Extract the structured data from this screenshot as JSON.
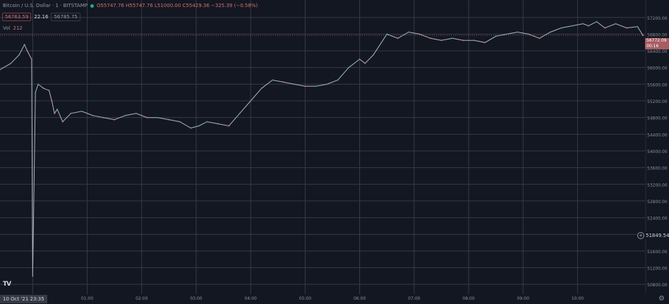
{
  "header": {
    "title": "Bitcoin / U.S. Dollar · 1 · BITSTAMP",
    "ohlc": "O55747.76 H55747.76 L51000.00 C55429.36 −325.39 (−0.58%)",
    "bid": "56763.59",
    "spread": "22.16",
    "ask": "56785.75",
    "volume_label": "Vol",
    "volume_value": "212"
  },
  "price_tag": {
    "price": "56772.09",
    "countdown": "00:16"
  },
  "crosshair_price": "51849.54",
  "crosshair_time": "10 Oct '21  23:35",
  "logo": "TV",
  "colors": {
    "bg": "#131722",
    "grid": "#363a45",
    "line": "#b2b5be",
    "down": "#d16f74",
    "up": "#26a69a"
  },
  "chart_data": {
    "type": "line",
    "x_ticks": [
      "11",
      "01:00",
      "02:00",
      "03:00",
      "04:00",
      "05:00",
      "06:00",
      "07:00",
      "08:00",
      "09:00",
      "10:00"
    ],
    "y_ticks": [
      57200,
      56800,
      56400,
      56000,
      55600,
      55200,
      54800,
      54400,
      54000,
      53600,
      53200,
      52800,
      52400,
      52000,
      51600,
      51200,
      50800
    ],
    "ylim": [
      50600,
      57450
    ],
    "xlim": [
      -0.6,
      11.25
    ],
    "series": [
      {
        "x": [
          -0.6,
          -0.4,
          -0.25,
          -0.15,
          -0.1,
          -0.02,
          0.0,
          0.05,
          0.1,
          0.2,
          0.3,
          0.35,
          0.4,
          0.45,
          0.55,
          0.7,
          0.9,
          1.1,
          1.3,
          1.5,
          1.7,
          1.9,
          2.1,
          2.3,
          2.5,
          2.7,
          2.9,
          3.05,
          3.2,
          3.4,
          3.6,
          3.8,
          4.0,
          4.2,
          4.4,
          4.6,
          4.8,
          5.0,
          5.2,
          5.4,
          5.6,
          5.8,
          6.0,
          6.1,
          6.25,
          6.4,
          6.5,
          6.7,
          6.9,
          7.1,
          7.3,
          7.5,
          7.7,
          7.9,
          8.1,
          8.3,
          8.5,
          8.7,
          8.9,
          9.1,
          9.3,
          9.5,
          9.7,
          9.9,
          10.1,
          10.2,
          10.35,
          10.5,
          10.7,
          10.9,
          11.1,
          11.2
        ],
        "values": [
          55950,
          56100,
          56300,
          56550,
          56400,
          56200,
          51000,
          55400,
          55600,
          55500,
          55450,
          55200,
          54900,
          55000,
          54700,
          54900,
          54950,
          54850,
          54800,
          54750,
          54850,
          54900,
          54800,
          54800,
          54750,
          54700,
          54550,
          54600,
          54700,
          54650,
          54600,
          54900,
          55200,
          55500,
          55700,
          55650,
          55600,
          55550,
          55550,
          55600,
          55700,
          56000,
          56200,
          56100,
          56300,
          56600,
          56800,
          56700,
          56850,
          56800,
          56700,
          56650,
          56700,
          56650,
          56650,
          56600,
          56750,
          56800,
          56850,
          56800,
          56700,
          56850,
          56950,
          57000,
          57050,
          57000,
          57100,
          56950,
          57050,
          56950,
          56980,
          56772
        ]
      }
    ]
  }
}
